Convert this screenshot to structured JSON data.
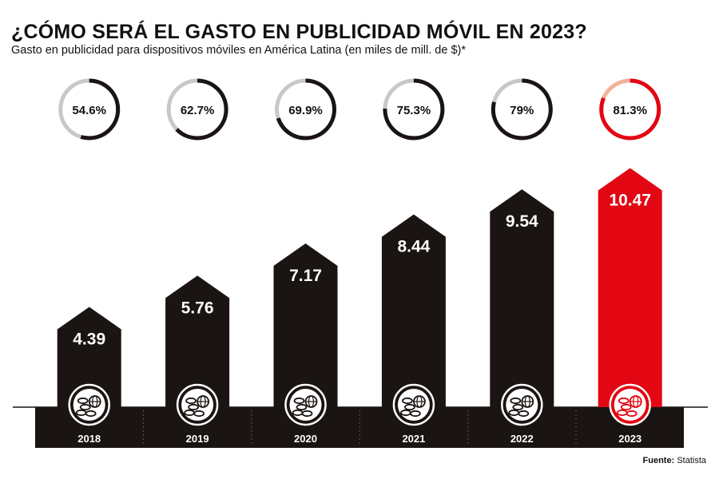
{
  "title": "¿CÓMO SERÁ EL GASTO EN PUBLICIDAD MÓVIL EN 2023?",
  "subtitle": "Gasto en publicidad para dispositivos móviles en América Latina (en miles de mill. de $)*",
  "source": {
    "label": "Fuente:",
    "value": "Statista"
  },
  "chart_data": {
    "type": "bar",
    "title": "¿CÓMO SERÁ EL GASTO EN PUBLICIDAD MÓVIL EN 2023?",
    "subtitle": "Gasto en publicidad para dispositivos móviles en América Latina (en miles de mill. de $)*",
    "categories": [
      "2018",
      "2019",
      "2020",
      "2021",
      "2022",
      "2023"
    ],
    "values": [
      4.39,
      5.76,
      7.17,
      8.44,
      9.54,
      10.47
    ],
    "value_labels": [
      "4.39",
      "5.76",
      "7.17",
      "8.44",
      "9.54",
      "10.47"
    ],
    "shares": [
      54.6,
      62.7,
      69.9,
      75.3,
      79,
      81.3
    ],
    "share_labels": [
      "54.6%",
      "62.7%",
      "69.9%",
      "75.3%",
      "79%",
      "81.3%"
    ],
    "highlight_index": 5,
    "grid": false,
    "legend": "none",
    "colors": {
      "bar": "#1a1412",
      "highlight": "#e30613",
      "ring_track": "#c9c7c8",
      "ring_track_highlight": "#f2b29a",
      "base_band": "#1a1412",
      "text_light": "#ffffff",
      "text_dark": "#111111"
    },
    "icon": "coins-globe-icon"
  }
}
